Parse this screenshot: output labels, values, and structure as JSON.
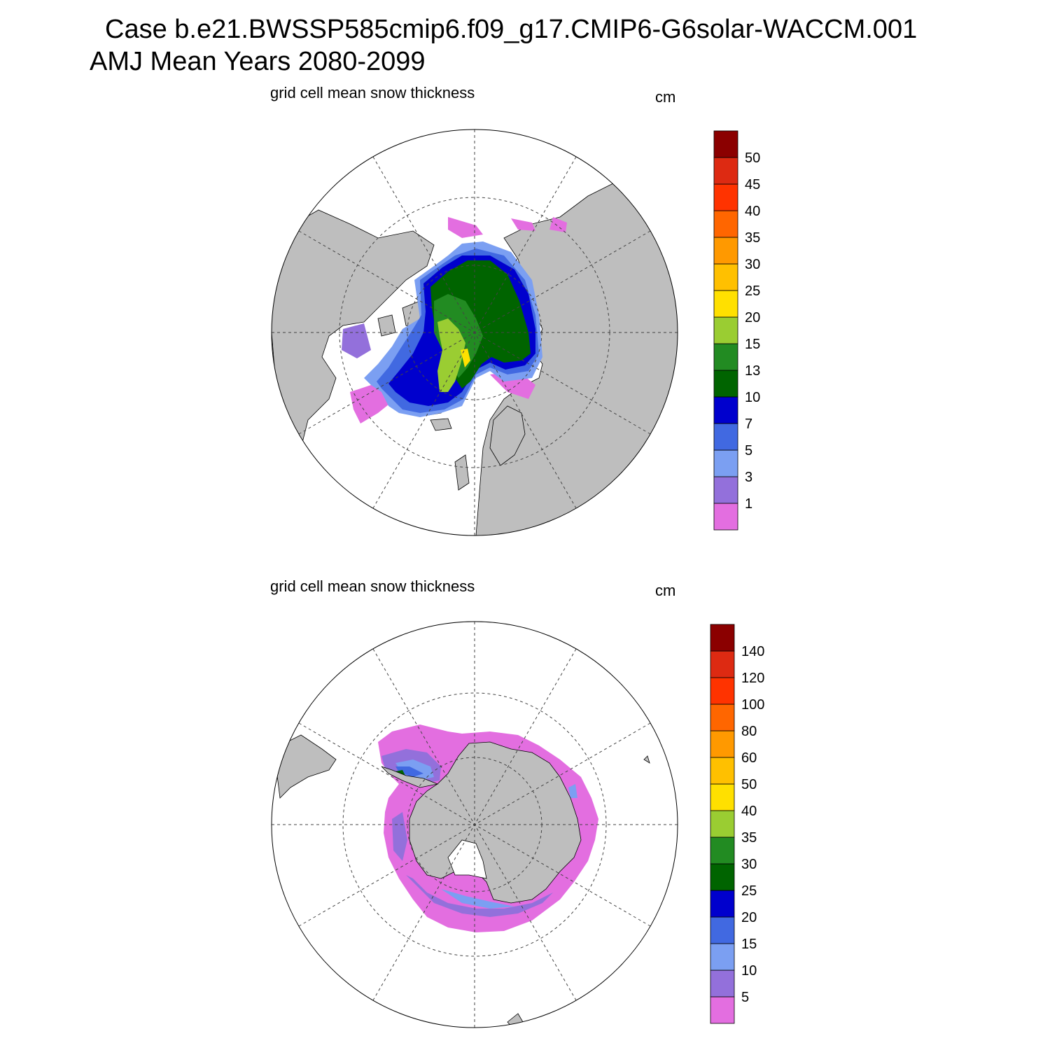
{
  "title": {
    "line1": "Case b.e21.BWSSP585cmip6.f09_g17.CMIP6-G6solar-WACCM.001",
    "line2": "AMJ Mean   Years 2080-2099"
  },
  "colors": {
    "land": "#bebebe",
    "ocean": "#ffffff",
    "grid": "#444444",
    "palette": [
      "#e36ee0",
      "#9370db",
      "#7b9ff2",
      "#4169e1",
      "#0000cd",
      "#006400",
      "#228b22",
      "#9acd32",
      "#ffe000",
      "#ffc000",
      "#ff9900",
      "#ff6600",
      "#ff3300",
      "#dd2a12",
      "#8b0000"
    ]
  },
  "panels": [
    {
      "id": "arctic",
      "label": "grid cell mean snow thickness",
      "units": "cm",
      "hemisphere": "north",
      "colorbar_levels": [
        "1",
        "3",
        "5",
        "7",
        "10",
        "13",
        "15",
        "20",
        "25",
        "30",
        "35",
        "40",
        "45",
        "50"
      ]
    },
    {
      "id": "antarctic",
      "label": "grid cell mean snow thickness",
      "units": "cm",
      "hemisphere": "south",
      "colorbar_levels": [
        "5",
        "10",
        "15",
        "20",
        "25",
        "30",
        "35",
        "40",
        "50",
        "60",
        "80",
        "100",
        "120",
        "140"
      ]
    }
  ]
}
